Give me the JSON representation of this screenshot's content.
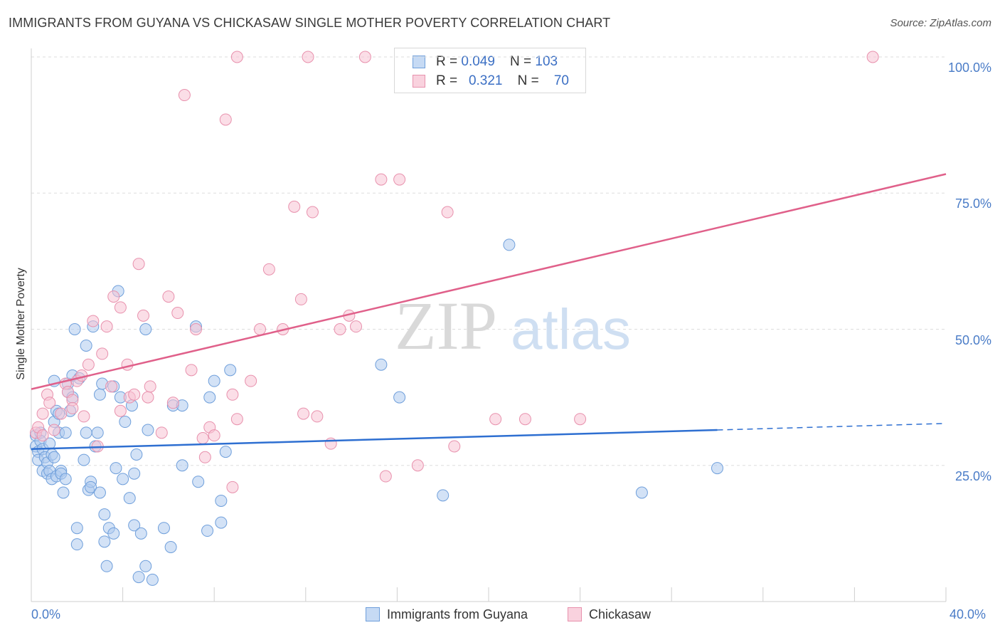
{
  "header": {
    "title": "IMMIGRANTS FROM GUYANA VS CHICKASAW SINGLE MOTHER POVERTY CORRELATION CHART",
    "source": "Source: ZipAtlas.com"
  },
  "legend": {
    "row1": {
      "r_label": "R = ",
      "r_value": "0.049",
      "n_label": "N = ",
      "n_value": "103"
    },
    "row2": {
      "r_label": "R = ",
      "r_value": "0.321",
      "n_label": "N = ",
      "n_value": "70"
    }
  },
  "watermark": {
    "zip": "ZIP",
    "atlas": "atlas"
  },
  "colors": {
    "blue_fill": "#aecbef",
    "blue_stroke": "#6f9fdb",
    "blue_line": "#2e6fd1",
    "pink_fill": "#f7c3d3",
    "pink_stroke": "#e891ad",
    "pink_line": "#e0608a",
    "tick_label": "#4a7cc7"
  },
  "chart_data": {
    "type": "scatter",
    "title": "IMMIGRANTS FROM GUYANA VS CHICKASAW SINGLE MOTHER POVERTY CORRELATION CHART",
    "xlabel": "",
    "ylabel": "Single Mother Poverty",
    "xlim": [
      0,
      40
    ],
    "ylim": [
      0,
      102
    ],
    "x_ticks": [
      "0.0%",
      "40.0%"
    ],
    "y_ticks": [
      "25.0%",
      "50.0%",
      "75.0%",
      "100.0%"
    ],
    "y_tick_values": [
      25,
      50,
      75,
      100
    ],
    "grid": true,
    "legend_position": "top-center",
    "series": [
      {
        "name": "Immigrants from Guyana",
        "color": "#aecbef",
        "trend": {
          "x0": 0,
          "y0": 28.0,
          "x1": 30.0,
          "y1": 31.5,
          "dash_to_x": 40,
          "dash_to_y": 32.7
        },
        "points": [
          [
            0.2,
            30.5
          ],
          [
            0.2,
            28.5
          ],
          [
            0.3,
            27.5
          ],
          [
            0.3,
            26.0
          ],
          [
            0.4,
            31.0
          ],
          [
            0.4,
            29.5
          ],
          [
            0.5,
            24.0
          ],
          [
            0.5,
            28.0
          ],
          [
            0.6,
            26.5
          ],
          [
            0.7,
            25.5
          ],
          [
            0.7,
            23.5
          ],
          [
            0.8,
            24.0
          ],
          [
            0.8,
            29.0
          ],
          [
            0.9,
            27.0
          ],
          [
            0.9,
            22.5
          ],
          [
            1.0,
            26.5
          ],
          [
            1.0,
            33.0
          ],
          [
            1.0,
            40.5
          ],
          [
            1.1,
            35.0
          ],
          [
            1.1,
            23.0
          ],
          [
            1.2,
            31.0
          ],
          [
            1.2,
            34.5
          ],
          [
            1.3,
            24.0
          ],
          [
            1.3,
            23.5
          ],
          [
            1.4,
            20.0
          ],
          [
            1.5,
            22.5
          ],
          [
            1.5,
            31.0
          ],
          [
            1.6,
            38.5
          ],
          [
            1.6,
            40.0
          ],
          [
            1.7,
            35.0
          ],
          [
            1.8,
            37.5
          ],
          [
            1.8,
            41.5
          ],
          [
            1.9,
            50.0
          ],
          [
            2.0,
            10.5
          ],
          [
            2.0,
            13.5
          ],
          [
            2.1,
            41.0
          ],
          [
            2.3,
            26.0
          ],
          [
            2.4,
            47.0
          ],
          [
            2.4,
            31.0
          ],
          [
            2.5,
            20.5
          ],
          [
            2.6,
            22.0
          ],
          [
            2.6,
            21.0
          ],
          [
            2.7,
            50.5
          ],
          [
            2.8,
            28.5
          ],
          [
            2.9,
            31.0
          ],
          [
            3.0,
            20.0
          ],
          [
            3.0,
            38.0
          ],
          [
            3.1,
            40.0
          ],
          [
            3.2,
            11.0
          ],
          [
            3.2,
            16.0
          ],
          [
            3.3,
            6.5
          ],
          [
            3.4,
            13.5
          ],
          [
            3.6,
            12.5
          ],
          [
            3.6,
            39.5
          ],
          [
            3.7,
            24.5
          ],
          [
            3.8,
            57.0
          ],
          [
            3.9,
            37.5
          ],
          [
            4.0,
            22.5
          ],
          [
            4.1,
            33.0
          ],
          [
            4.3,
            19.0
          ],
          [
            4.4,
            36.0
          ],
          [
            4.5,
            14.0
          ],
          [
            4.5,
            23.5
          ],
          [
            4.6,
            27.0
          ],
          [
            4.7,
            4.5
          ],
          [
            4.8,
            12.5
          ],
          [
            5.0,
            6.5
          ],
          [
            5.0,
            50.0
          ],
          [
            5.1,
            31.5
          ],
          [
            5.3,
            4.0
          ],
          [
            5.8,
            13.5
          ],
          [
            6.1,
            10.0
          ],
          [
            6.2,
            36.0
          ],
          [
            6.6,
            36.0
          ],
          [
            6.6,
            25.0
          ],
          [
            7.2,
            50.5
          ],
          [
            7.3,
            22.0
          ],
          [
            7.7,
            13.0
          ],
          [
            7.8,
            37.5
          ],
          [
            8.0,
            40.5
          ],
          [
            8.3,
            18.5
          ],
          [
            8.3,
            14.5
          ],
          [
            8.5,
            27.5
          ],
          [
            8.7,
            42.5
          ],
          [
            15.3,
            43.5
          ],
          [
            16.1,
            37.5
          ],
          [
            18.0,
            19.5
          ],
          [
            20.9,
            65.5
          ],
          [
            26.7,
            20.0
          ],
          [
            30.0,
            24.5
          ]
        ]
      },
      {
        "name": "Chickasaw",
        "color": "#f7c3d3",
        "trend": {
          "x0": 0,
          "y0": 39.0,
          "x1": 40,
          "y1": 78.5
        },
        "points": [
          [
            0.2,
            31.0
          ],
          [
            0.3,
            32.0
          ],
          [
            0.5,
            30.5
          ],
          [
            0.5,
            34.5
          ],
          [
            0.7,
            38.0
          ],
          [
            0.8,
            36.5
          ],
          [
            1.0,
            31.5
          ],
          [
            1.3,
            34.5
          ],
          [
            1.5,
            40.0
          ],
          [
            1.6,
            38.5
          ],
          [
            1.8,
            37.0
          ],
          [
            1.8,
            35.5
          ],
          [
            2.0,
            40.5
          ],
          [
            2.2,
            41.5
          ],
          [
            2.3,
            34.0
          ],
          [
            2.5,
            43.5
          ],
          [
            2.7,
            51.5
          ],
          [
            2.9,
            28.5
          ],
          [
            3.1,
            45.5
          ],
          [
            3.3,
            50.5
          ],
          [
            3.5,
            39.5
          ],
          [
            3.6,
            56.0
          ],
          [
            3.9,
            54.0
          ],
          [
            3.9,
            35.0
          ],
          [
            4.2,
            43.5
          ],
          [
            4.3,
            37.5
          ],
          [
            4.5,
            38.0
          ],
          [
            4.7,
            62.0
          ],
          [
            4.9,
            52.5
          ],
          [
            5.1,
            37.5
          ],
          [
            5.2,
            39.5
          ],
          [
            5.7,
            31.0
          ],
          [
            6.0,
            56.0
          ],
          [
            6.2,
            36.5
          ],
          [
            6.4,
            53.0
          ],
          [
            6.7,
            93.0
          ],
          [
            7.0,
            42.5
          ],
          [
            7.2,
            50.0
          ],
          [
            7.5,
            30.0
          ],
          [
            7.6,
            26.5
          ],
          [
            7.8,
            32.0
          ],
          [
            8.0,
            30.5
          ],
          [
            8.5,
            88.5
          ],
          [
            8.8,
            21.0
          ],
          [
            8.8,
            38.0
          ],
          [
            9.0,
            33.5
          ],
          [
            9.6,
            40.5
          ],
          [
            10.0,
            50.0
          ],
          [
            10.4,
            61.0
          ],
          [
            11.0,
            50.0
          ],
          [
            11.5,
            72.5
          ],
          [
            11.8,
            55.5
          ],
          [
            11.9,
            34.5
          ],
          [
            12.3,
            71.5
          ],
          [
            12.5,
            34.0
          ],
          [
            13.1,
            29.0
          ],
          [
            13.5,
            50.0
          ],
          [
            13.9,
            52.5
          ],
          [
            14.2,
            50.5
          ],
          [
            14.6,
            100.0
          ],
          [
            12.1,
            100.0
          ],
          [
            9.0,
            100.0
          ],
          [
            15.3,
            77.5
          ],
          [
            15.5,
            23.0
          ],
          [
            16.1,
            77.5
          ],
          [
            16.9,
            25.0
          ],
          [
            18.2,
            71.5
          ],
          [
            18.5,
            28.5
          ],
          [
            20.3,
            33.5
          ],
          [
            21.6,
            33.5
          ],
          [
            24.0,
            33.5
          ],
          [
            36.8,
            100.0
          ]
        ]
      }
    ]
  }
}
